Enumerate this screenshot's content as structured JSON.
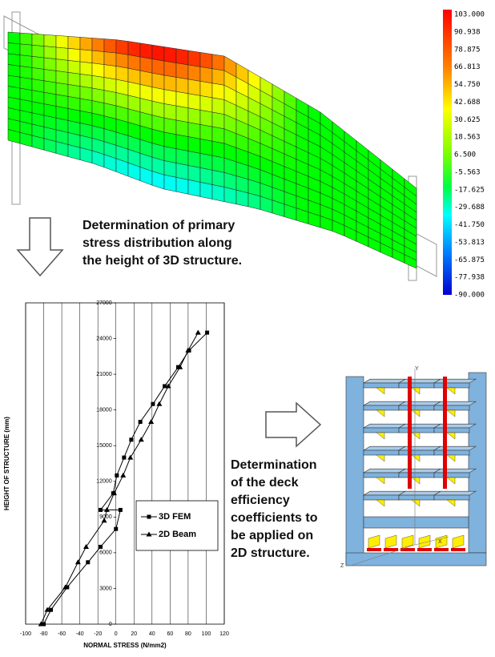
{
  "color_scale": {
    "labels": [
      "103.000",
      "90.938",
      "78.875",
      "66.813",
      "54.750",
      "42.688",
      "30.625",
      "18.563",
      "6.500",
      "-5.563",
      "-17.625",
      "-29.688",
      "-41.750",
      "-53.813",
      "-65.875",
      "-77.938",
      "-90.000"
    ]
  },
  "captions": [
    {
      "lines": [
        "Determination of primary",
        "stress distribution along",
        "the height of 3D structure."
      ]
    },
    {
      "lines": [
        "Determination",
        "of the deck",
        "efficiency",
        "coefficients to",
        "be applied on",
        "2D structure."
      ]
    }
  ],
  "structure_axes": [
    "Y",
    "X",
    "Z"
  ],
  "chart_data": {
    "type": "line",
    "x_label": "NORMAL STRESS (N/mm2)",
    "y_label": "HEIGHT OF STRUCTURE (mm)",
    "xlim": [
      -100,
      120
    ],
    "xticks": [
      -100,
      -80,
      -60,
      -40,
      -20,
      0,
      20,
      40,
      60,
      80,
      100,
      120
    ],
    "ylim": [
      0,
      27000
    ],
    "yticks": [
      0,
      3000,
      6000,
      9000,
      12000,
      15000,
      18000,
      21000,
      24000,
      27000
    ],
    "grid": "x",
    "legend": "lower-right",
    "series": [
      {
        "name": "3D FEM",
        "color": "#000000",
        "marker": "square",
        "x": [
          -80,
          -72,
          -54,
          -31,
          -17,
          0,
          5,
          -17,
          -3,
          1,
          9,
          17,
          27,
          41,
          54,
          69,
          81,
          101
        ],
        "values": [
          0,
          1200,
          3100,
          5200,
          6500,
          8000,
          9600,
          9600,
          11000,
          12500,
          14000,
          15500,
          17000,
          18500,
          20000,
          21600,
          23000,
          24500
        ]
      },
      {
        "name": "2D Beam",
        "color": "#000000",
        "marker": "triangle",
        "x": [
          -83,
          -76,
          -56,
          -42,
          -33,
          -13,
          -10,
          -2,
          8,
          16,
          28,
          39,
          48,
          58,
          71,
          80,
          91
        ],
        "values": [
          0,
          1200,
          3100,
          5200,
          6500,
          8700,
          9600,
          11000,
          12500,
          14000,
          15500,
          17000,
          18500,
          20000,
          21600,
          23000,
          24500
        ]
      }
    ]
  }
}
